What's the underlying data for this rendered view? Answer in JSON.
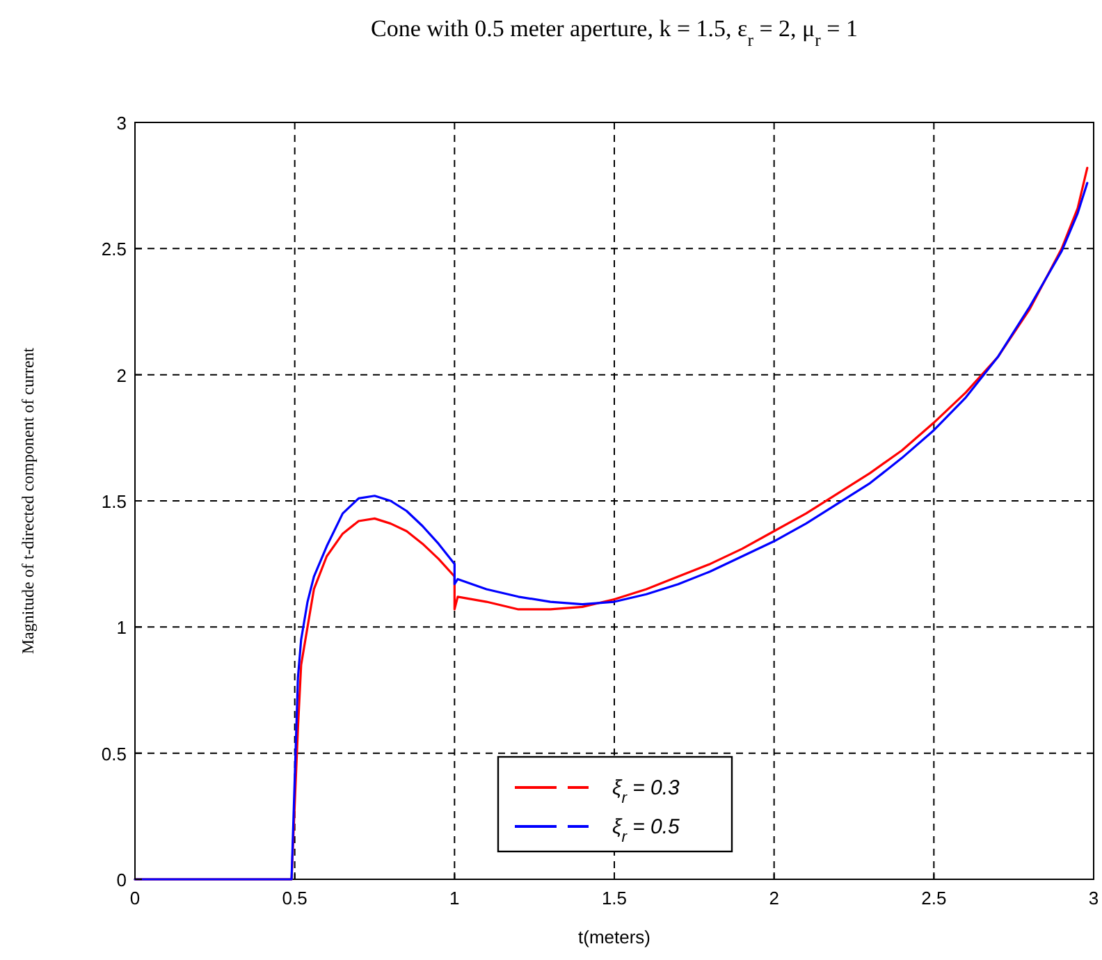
{
  "chart_data": {
    "type": "line",
    "title": "Cone with 0.5 meter aperture,  k = 1.5, ε$_{r}$ = 2, μ$_{r}$ = 1",
    "xlabel": "t(meters)",
    "ylabel": "Magnitude of  t-directed component of current",
    "xlim": [
      0,
      3
    ],
    "ylim": [
      0,
      3
    ],
    "xticks": [
      0,
      0.5,
      1,
      1.5,
      2,
      2.5,
      3
    ],
    "yticks": [
      0,
      0.5,
      1,
      1.5,
      2,
      2.5,
      3
    ],
    "grid": true,
    "legend": "bottom",
    "line_style": "solid",
    "marker": "none",
    "series": [
      {
        "name": "ξ$_{r}$ = 0.3",
        "color": "#ff0000",
        "x": [
          0,
          0.49,
          0.5,
          0.51,
          0.52,
          0.54,
          0.56,
          0.6,
          0.65,
          0.7,
          0.75,
          0.8,
          0.85,
          0.9,
          0.95,
          1.0,
          1.0,
          1.01,
          1.1,
          1.2,
          1.3,
          1.4,
          1.5,
          1.6,
          1.7,
          1.8,
          1.9,
          2.0,
          2.1,
          2.2,
          2.3,
          2.4,
          2.5,
          2.6,
          2.7,
          2.8,
          2.9,
          2.95,
          2.98
        ],
        "values": [
          0,
          0,
          0.3,
          0.6,
          0.85,
          1.0,
          1.15,
          1.28,
          1.37,
          1.42,
          1.43,
          1.41,
          1.38,
          1.33,
          1.27,
          1.2,
          1.07,
          1.12,
          1.1,
          1.07,
          1.07,
          1.08,
          1.11,
          1.15,
          1.2,
          1.25,
          1.31,
          1.38,
          1.45,
          1.53,
          1.61,
          1.7,
          1.81,
          1.93,
          2.07,
          2.26,
          2.5,
          2.66,
          2.82
        ]
      },
      {
        "name": "ξ$_{r}$ = 0.5",
        "color": "#0000ff",
        "x": [
          0,
          0.49,
          0.5,
          0.51,
          0.52,
          0.54,
          0.56,
          0.6,
          0.65,
          0.7,
          0.75,
          0.8,
          0.85,
          0.9,
          0.95,
          1.0,
          1.0,
          1.01,
          1.1,
          1.2,
          1.3,
          1.4,
          1.5,
          1.6,
          1.7,
          1.8,
          1.9,
          2.0,
          2.1,
          2.2,
          2.3,
          2.4,
          2.5,
          2.6,
          2.7,
          2.8,
          2.9,
          2.95,
          2.98
        ],
        "values": [
          0,
          0,
          0.4,
          0.8,
          0.95,
          1.1,
          1.2,
          1.32,
          1.45,
          1.51,
          1.52,
          1.5,
          1.46,
          1.4,
          1.33,
          1.25,
          1.17,
          1.19,
          1.15,
          1.12,
          1.1,
          1.09,
          1.1,
          1.13,
          1.17,
          1.22,
          1.28,
          1.34,
          1.41,
          1.49,
          1.57,
          1.67,
          1.78,
          1.91,
          2.07,
          2.27,
          2.49,
          2.64,
          2.76
        ]
      }
    ]
  }
}
